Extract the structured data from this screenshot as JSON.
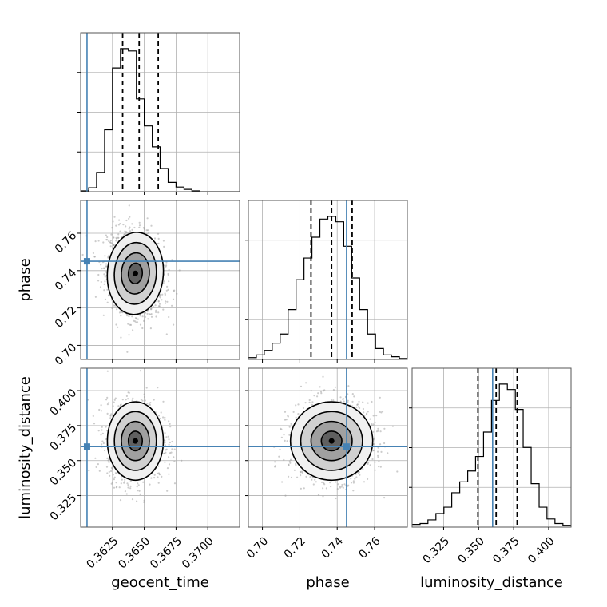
{
  "chart_data": {
    "type": "corner",
    "parameters": [
      "geocent_time",
      "phase",
      "luminosity_distance"
    ],
    "axis_labels": {
      "bottom": [
        "geocent_time",
        "phase",
        "luminosity_distance"
      ],
      "left": [
        "phase",
        "luminosity_distance"
      ]
    },
    "truths": {
      "geocent_time": 0.3605,
      "phase": 0.745,
      "luminosity_distance": 0.36
    },
    "truth_color": "#4682b4",
    "ranges": {
      "geocent_time": [
        0.36,
        0.3725
      ],
      "phase": [
        0.6925,
        0.7775
      ],
      "luminosity_distance": [
        0.3025,
        0.416
      ]
    },
    "ticks": {
      "geocent_time": {
        "values": [
          0.3625,
          0.365,
          0.3675,
          0.37
        ],
        "labels": [
          "0.3625",
          "0.3650",
          "0.3675",
          "0.3700"
        ]
      },
      "phase": {
        "values": [
          0.7,
          0.72,
          0.74,
          0.76
        ],
        "labels": [
          "0.70",
          "0.72",
          "0.74",
          "0.76"
        ]
      },
      "luminosity_distance": {
        "values": [
          0.325,
          0.35,
          0.375,
          0.4
        ],
        "labels": [
          "0.325",
          "0.350",
          "0.375",
          "0.400"
        ]
      }
    },
    "quantiles": {
      "geocent_time": [
        0.3633,
        0.3646,
        0.3661
      ],
      "phase": [
        0.726,
        0.737,
        0.748
      ],
      "luminosity_distance": [
        0.3495,
        0.3625,
        0.3775
      ]
    },
    "histograms": {
      "geocent_time": {
        "bin_edges": [
          0.36,
          0.36063,
          0.36125,
          0.36188,
          0.3625,
          0.36313,
          0.36375,
          0.36438,
          0.365,
          0.36563,
          0.36625,
          0.36688,
          0.3675,
          0.36813,
          0.36875,
          0.36938,
          0.37,
          0.37063,
          0.37125,
          0.37188,
          0.3725
        ],
        "counts": [
          1,
          5,
          25,
          80,
          160,
          185,
          182,
          120,
          85,
          58,
          30,
          12,
          6,
          3,
          1,
          0,
          0,
          0,
          0,
          0
        ]
      },
      "phase": {
        "bin_edges": [
          0.6925,
          0.69675,
          0.701,
          0.70525,
          0.7095,
          0.71375,
          0.718,
          0.72225,
          0.7265,
          0.73075,
          0.735,
          0.73925,
          0.7435,
          0.74775,
          0.752,
          0.75625,
          0.7605,
          0.76475,
          0.769,
          0.77325,
          0.7775
        ],
        "counts": [
          2,
          5,
          10,
          18,
          28,
          55,
          88,
          112,
          135,
          155,
          158,
          152,
          125,
          90,
          55,
          28,
          12,
          5,
          3,
          1
        ]
      },
      "luminosity_distance": {
        "bin_edges": [
          0.3025,
          0.3082,
          0.3138,
          0.3195,
          0.3252,
          0.3308,
          0.3365,
          0.3422,
          0.3478,
          0.3535,
          0.3592,
          0.3648,
          0.3705,
          0.3762,
          0.3818,
          0.3875,
          0.3932,
          0.3988,
          0.4045,
          0.4102,
          0.416
        ],
        "counts": [
          3,
          4,
          8,
          15,
          22,
          38,
          50,
          62,
          78,
          105,
          140,
          158,
          152,
          130,
          88,
          48,
          22,
          9,
          4,
          2
        ]
      }
    },
    "joint_2d": [
      {
        "x": "geocent_time",
        "y": "phase",
        "mean": [
          0.3643,
          0.7385
        ],
        "std": [
          0.0011,
          0.011
        ],
        "corr": -0.2
      },
      {
        "x": "geocent_time",
        "y": "luminosity_distance",
        "mean": [
          0.3643,
          0.364
        ],
        "std": [
          0.0011,
          0.014
        ],
        "corr": 0.0
      },
      {
        "x": "phase",
        "y": "luminosity_distance",
        "mean": [
          0.737,
          0.364
        ],
        "std": [
          0.011,
          0.014
        ],
        "corr": 0.05
      }
    ],
    "contour_levels_sigma": [
      0.5,
      1.0,
      1.5,
      2.0
    ],
    "grid": true
  }
}
